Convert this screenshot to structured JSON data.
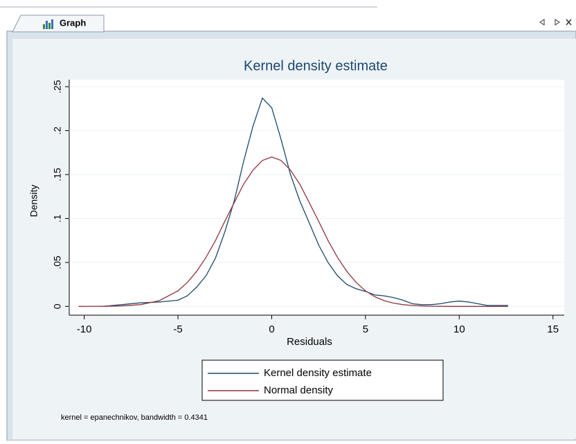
{
  "window": {
    "tab": "Graph"
  },
  "chart_data": {
    "type": "line",
    "title": "Kernel density estimate",
    "x_label": "Residuals",
    "y_label": "Density",
    "note": "kernel = epanechnikov, bandwidth = 0.4341",
    "x": [
      -10.3,
      -9,
      -8,
      -7,
      -6,
      -5,
      -4.5,
      -4,
      -3.5,
      -3,
      -2.5,
      -2,
      -1.5,
      -1,
      -0.5,
      0,
      0.5,
      1,
      1.5,
      2,
      2.5,
      3,
      3.5,
      4,
      4.5,
      5,
      5.5,
      6,
      6.5,
      7,
      7.5,
      8,
      8.5,
      9,
      9.5,
      10,
      10.5,
      11,
      11.5,
      12,
      12.6
    ],
    "series": [
      {
        "name": "Kernel density estimate",
        "color": "#1a476f",
        "values": [
          null,
          0.0,
          0.002,
          0.004,
          0.005,
          0.007,
          0.012,
          0.022,
          0.035,
          0.055,
          0.085,
          0.12,
          0.165,
          0.205,
          0.237,
          0.226,
          0.19,
          0.15,
          0.12,
          0.095,
          0.07,
          0.05,
          0.035,
          0.025,
          0.02,
          0.017,
          0.013,
          0.012,
          0.01,
          0.007,
          0.003,
          0.002,
          0.002,
          0.003,
          0.005,
          0.006,
          0.005,
          0.003,
          0.001,
          0.001,
          0.001
        ]
      },
      {
        "name": "Normal density",
        "color": "#90353b",
        "values": [
          0.0,
          0.0001,
          0.0005,
          0.002,
          0.0065,
          0.0177,
          0.0272,
          0.04,
          0.056,
          0.075,
          0.097,
          0.118,
          0.139,
          0.155,
          0.166,
          0.17,
          0.166,
          0.155,
          0.139,
          0.118,
          0.097,
          0.075,
          0.056,
          0.04,
          0.0272,
          0.0177,
          0.011,
          0.0065,
          0.0037,
          0.002,
          0.001,
          0.0005,
          0.0002,
          0.0001,
          0.0,
          0.0,
          0.0,
          0.0,
          0.0,
          0.0,
          0.0
        ]
      }
    ],
    "xlim": [
      -10.8,
      15.6
    ],
    "ylim": [
      -0.01,
      0.258
    ],
    "xticks": [
      -10,
      -5,
      0,
      5,
      10,
      15
    ],
    "yticks": [
      0,
      {
        "value": 0.05,
        "label": ".05"
      },
      {
        "value": 0.1,
        "label": ".1"
      },
      {
        "value": 0.15,
        "label": ".15"
      },
      {
        "value": 0.2,
        "label": ".2"
      },
      {
        "value": 0.25,
        "label": ".25"
      }
    ],
    "grid": true
  }
}
